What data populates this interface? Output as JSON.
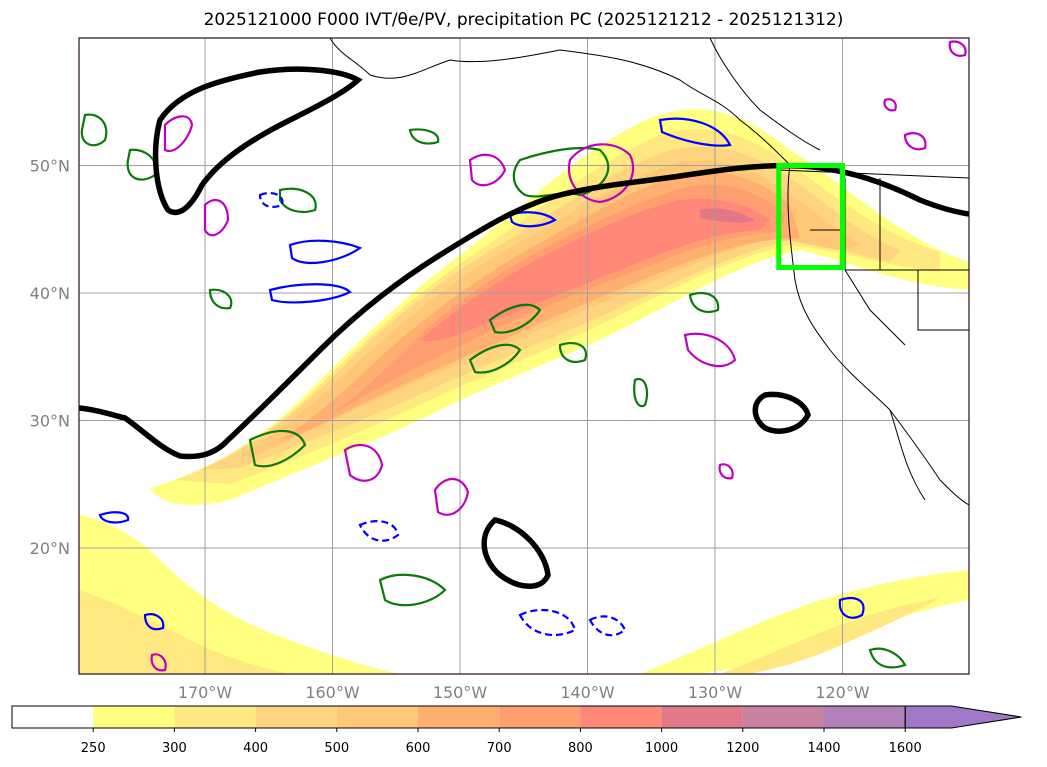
{
  "title": "2025121000 F000 IVT/θe/PV, precipitation PC (2025121212 - 2025121312)",
  "colors": {
    "frame": "#2a0a2a",
    "grid": "#a0a0a0",
    "coast": "#000000",
    "theta_e_line": "#000000",
    "box": "#00ff00",
    "pv_green": "#0a7a0a",
    "pv_blue": "#0000ff",
    "pv_magenta": "#c000c0"
  },
  "map": {
    "latitudes": [
      {
        "value": 50,
        "label": "50°N"
      },
      {
        "value": 40,
        "label": "40°N"
      },
      {
        "value": 30,
        "label": "30°N"
      },
      {
        "value": 20,
        "label": "20°N"
      }
    ],
    "longitudes": [
      {
        "value": -170,
        "label": "170°W"
      },
      {
        "value": -160,
        "label": "160°W"
      },
      {
        "value": -150,
        "label": "150°W"
      },
      {
        "value": -140,
        "label": "140°W"
      },
      {
        "value": -130,
        "label": "130°W"
      },
      {
        "value": -120,
        "label": "120°W"
      }
    ],
    "target_box": {
      "lon_min": -125,
      "lon_max": -120,
      "lat_min": 42,
      "lat_max": 50
    }
  },
  "colorbar": {
    "ticks": [
      "250",
      "300",
      "400",
      "500",
      "600",
      "700",
      "800",
      "1000",
      "1200",
      "1400",
      "1600"
    ],
    "colors": [
      "#ffffff",
      "#ffff80",
      "#ffe880",
      "#ffd480",
      "#ffc878",
      "#ffb070",
      "#ff9e70",
      "#ff8878",
      "#e07888",
      "#c880a0",
      "#b080b8",
      "#a078c8"
    ]
  }
}
